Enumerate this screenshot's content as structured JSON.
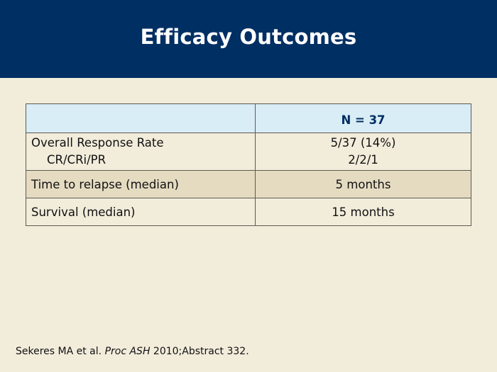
{
  "slide": {
    "title": "Efficacy Outcomes"
  },
  "colors": {
    "title_bar": "#002f63",
    "background": "#f2ecdb",
    "header_row": "#d9edf6",
    "shaded_row": "#e4dbc1"
  },
  "table": {
    "header": {
      "label": "",
      "value": "N = 37"
    },
    "rows": [
      {
        "label": "Overall Response Rate",
        "sublabel": "CR/CRi/PR",
        "value": "5/37 (14%)",
        "subvalue": "2/2/1"
      },
      {
        "label": "Time to relapse (median)",
        "value": "5 months"
      },
      {
        "label": "Survival (median)",
        "value": "15 months"
      }
    ]
  },
  "citation": {
    "authors": "Sekeres MA et al. ",
    "journal": "Proc ASH",
    "rest": " 2010;Abstract 332."
  }
}
